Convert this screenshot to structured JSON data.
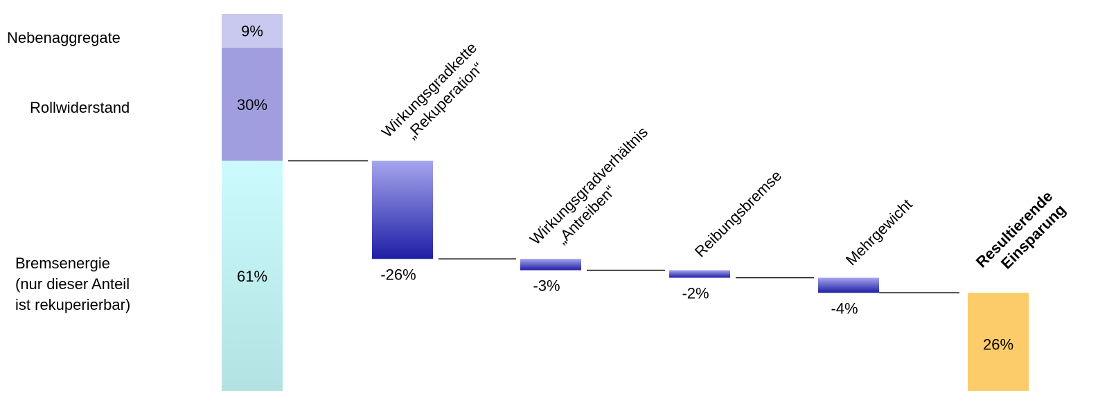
{
  "chart_data": {
    "type": "waterfall",
    "stack": {
      "segments": [
        {
          "label": "Nebenaggregate",
          "value": 9,
          "value_label": "9%",
          "color": "#c9c8ee"
        },
        {
          "label": "Rollwiderstand",
          "value": 30,
          "value_label": "30%",
          "color": "#a19edf"
        },
        {
          "label_lines": [
            "Bremsenergie",
            "(nur dieser Anteil",
            "ist rekuperierbar)"
          ],
          "value": 61,
          "value_label": "61%",
          "color_top": "#ccfbfd",
          "color_bottom": "#b3e2e2"
        }
      ]
    },
    "steps": [
      {
        "label_lines": [
          "Wirkungsgradkette",
          "„Rekuperation“"
        ],
        "value": -26,
        "value_label": "-26%"
      },
      {
        "label_lines": [
          "Wirkungsgradverhältnis",
          "„Antreiben“"
        ],
        "value": -3,
        "value_label": "-3%"
      },
      {
        "label_lines": [
          "Reibungsbremse"
        ],
        "value": -2,
        "value_label": "-2%"
      },
      {
        "label_lines": [
          "Mehrgewicht"
        ],
        "value": -4,
        "value_label": "-4%"
      }
    ],
    "step_color_top": "#a5a5ee",
    "step_color_bottom": "#1e1ea5",
    "result": {
      "label_lines": [
        "Resultierende",
        "Einsparung"
      ],
      "value": 26,
      "value_label": "26%",
      "color": "#fdcc6a"
    }
  }
}
